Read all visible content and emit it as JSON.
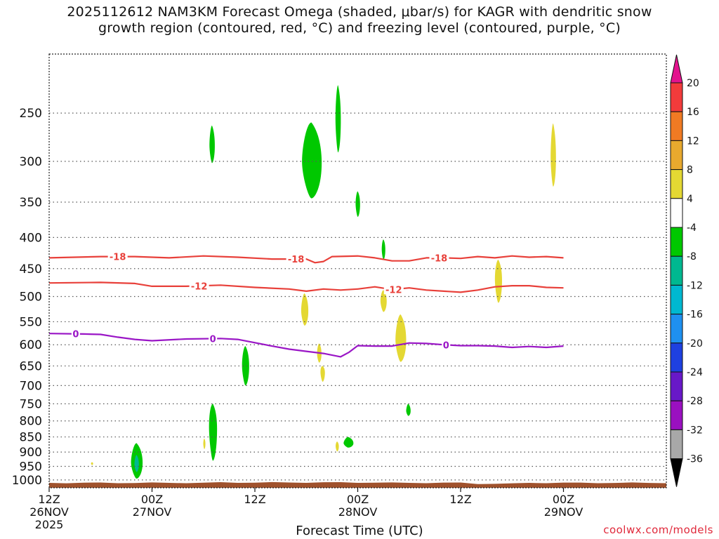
{
  "title_line1": "2025112612 NAM3KM Forecast Omega (shaded, μbar/s) for KAGR with dendritic snow",
  "title_line2": "growth region (contoured, red, °C) and freezing level (contoured, purple, °C)",
  "credit": "coolwx.com/models",
  "chart_data": {
    "type": "time-height",
    "xlabel": "Forecast Time (UTC)",
    "ylabel": "",
    "xlim_hours": [
      0,
      72
    ],
    "ylim_hpa": [
      1030,
      200
    ],
    "y_ticks": [
      250,
      300,
      350,
      400,
      450,
      500,
      550,
      600,
      650,
      700,
      750,
      800,
      850,
      900,
      950,
      1000
    ],
    "x_ticks": [
      {
        "hour": 0,
        "lines": [
          "12Z",
          "26NOV",
          "2025"
        ]
      },
      {
        "hour": 12,
        "lines": [
          "00Z",
          "27NOV"
        ]
      },
      {
        "hour": 24,
        "lines": [
          "12Z"
        ]
      },
      {
        "hour": 36,
        "lines": [
          "00Z",
          "28NOV"
        ]
      },
      {
        "hour": 48,
        "lines": [
          "12Z"
        ]
      },
      {
        "hour": 60,
        "lines": [
          "00Z",
          "29NOV"
        ]
      }
    ],
    "contours": [
      {
        "name": "dgz-minus18",
        "label": "-18",
        "color": "#e8403a",
        "label_hours": [
          8.0,
          28.8,
          45.5
        ],
        "points": [
          [
            0,
            432
          ],
          [
            6,
            430
          ],
          [
            10,
            430
          ],
          [
            14,
            432
          ],
          [
            18,
            429
          ],
          [
            22,
            431
          ],
          [
            26,
            434
          ],
          [
            30,
            434
          ],
          [
            31,
            440
          ],
          [
            32,
            438
          ],
          [
            33,
            430
          ],
          [
            36,
            429
          ],
          [
            38,
            432
          ],
          [
            40,
            437
          ],
          [
            42,
            437
          ],
          [
            44,
            432
          ],
          [
            46,
            432
          ],
          [
            48,
            433
          ],
          [
            50,
            430
          ],
          [
            52,
            432
          ],
          [
            54,
            429
          ],
          [
            56,
            431
          ],
          [
            58,
            430
          ],
          [
            60,
            432
          ]
        ]
      },
      {
        "name": "dgz-minus12",
        "label": "-12",
        "color": "#e8403a",
        "label_hours": [
          17.5,
          40.2
        ],
        "points": [
          [
            0,
            475
          ],
          [
            6,
            474
          ],
          [
            10,
            476
          ],
          [
            12,
            481
          ],
          [
            16,
            481
          ],
          [
            20,
            479
          ],
          [
            24,
            483
          ],
          [
            28,
            486
          ],
          [
            30,
            490
          ],
          [
            32,
            486
          ],
          [
            34,
            488
          ],
          [
            36,
            486
          ],
          [
            38,
            482
          ],
          [
            40,
            487
          ],
          [
            42,
            484
          ],
          [
            44,
            488
          ],
          [
            48,
            492
          ],
          [
            50,
            488
          ],
          [
            52,
            482
          ],
          [
            54,
            480
          ],
          [
            56,
            480
          ],
          [
            58,
            483
          ],
          [
            60,
            484
          ]
        ]
      },
      {
        "name": "freezing-level",
        "label": "0",
        "color": "#9a16c6",
        "label_hours": [
          3.1,
          19.1,
          46.3
        ],
        "points": [
          [
            0,
            575
          ],
          [
            4,
            576
          ],
          [
            6,
            577
          ],
          [
            8,
            583
          ],
          [
            10,
            588
          ],
          [
            12,
            591
          ],
          [
            16,
            587
          ],
          [
            20,
            586
          ],
          [
            22,
            588
          ],
          [
            26,
            603
          ],
          [
            28,
            610
          ],
          [
            30,
            615
          ],
          [
            32,
            620
          ],
          [
            34,
            628
          ],
          [
            35,
            617
          ],
          [
            36,
            602
          ],
          [
            38,
            603
          ],
          [
            40,
            603
          ],
          [
            42,
            596
          ],
          [
            44,
            597
          ],
          [
            46,
            600
          ],
          [
            48,
            602
          ],
          [
            50,
            602
          ],
          [
            52,
            603
          ],
          [
            54,
            606
          ],
          [
            56,
            604
          ],
          [
            58,
            606
          ],
          [
            60,
            603
          ]
        ]
      }
    ],
    "omega_shading": [
      {
        "value": -6,
        "color": "#00c800",
        "center_hour": 19.0,
        "center_hpa": 282,
        "half_width_hours": 0.3,
        "top_hpa": 262,
        "bottom_hpa": 302
      },
      {
        "value": -6,
        "color": "#00c800",
        "center_hour": 30.6,
        "center_hpa": 300,
        "half_width_hours": 1.1,
        "top_hpa": 259,
        "bottom_hpa": 345
      },
      {
        "value": -6,
        "color": "#00c800",
        "center_hour": 33.7,
        "center_hpa": 255,
        "half_width_hours": 0.3,
        "top_hpa": 225,
        "bottom_hpa": 290
      },
      {
        "value": -6,
        "color": "#00c800",
        "center_hour": 36.0,
        "center_hpa": 352,
        "half_width_hours": 0.25,
        "top_hpa": 336,
        "bottom_hpa": 370
      },
      {
        "value": -6,
        "color": "#00c800",
        "center_hour": 39.0,
        "center_hpa": 418,
        "half_width_hours": 0.2,
        "top_hpa": 403,
        "bottom_hpa": 435
      },
      {
        "value": -6,
        "color": "#00c800",
        "center_hour": 22.9,
        "center_hpa": 648,
        "half_width_hours": 0.4,
        "top_hpa": 603,
        "bottom_hpa": 700
      },
      {
        "value": -6,
        "color": "#00c800",
        "center_hour": 19.1,
        "center_hpa": 818,
        "half_width_hours": 0.45,
        "top_hpa": 750,
        "bottom_hpa": 930
      },
      {
        "value": -6,
        "color": "#00c800",
        "center_hour": 41.9,
        "center_hpa": 770,
        "half_width_hours": 0.25,
        "top_hpa": 750,
        "bottom_hpa": 785
      },
      {
        "value": -6,
        "color": "#00c800",
        "center_hour": 34.9,
        "center_hpa": 870,
        "half_width_hours": 0.55,
        "top_hpa": 850,
        "bottom_hpa": 885
      },
      {
        "value": -6,
        "color": "#00c800",
        "center_hour": 10.2,
        "center_hpa": 935,
        "half_width_hours": 0.65,
        "top_hpa": 870,
        "bottom_hpa": 995
      },
      {
        "value": -10,
        "color": "#00b890",
        "center_hour": 10.2,
        "center_hpa": 942,
        "half_width_hours": 0.25,
        "top_hpa": 910,
        "bottom_hpa": 970
      },
      {
        "value": 6,
        "color": "#e4d833",
        "center_hour": 58.8,
        "center_hpa": 295,
        "half_width_hours": 0.3,
        "top_hpa": 260,
        "bottom_hpa": 330
      },
      {
        "value": 6,
        "color": "#e4d833",
        "center_hour": 52.4,
        "center_hpa": 468,
        "half_width_hours": 0.4,
        "top_hpa": 435,
        "bottom_hpa": 512
      },
      {
        "value": 6,
        "color": "#e4d833",
        "center_hour": 29.8,
        "center_hpa": 527,
        "half_width_hours": 0.4,
        "top_hpa": 494,
        "bottom_hpa": 558
      },
      {
        "value": 6,
        "color": "#e4d833",
        "center_hour": 39.0,
        "center_hpa": 508,
        "half_width_hours": 0.35,
        "top_hpa": 488,
        "bottom_hpa": 530
      },
      {
        "value": 6,
        "color": "#e4d833",
        "center_hour": 41.0,
        "center_hpa": 588,
        "half_width_hours": 0.6,
        "top_hpa": 535,
        "bottom_hpa": 640
      },
      {
        "value": 6,
        "color": "#e4d833",
        "center_hour": 31.5,
        "center_hpa": 620,
        "half_width_hours": 0.25,
        "top_hpa": 597,
        "bottom_hpa": 642
      },
      {
        "value": 6,
        "color": "#e4d833",
        "center_hour": 31.9,
        "center_hpa": 665,
        "half_width_hours": 0.25,
        "top_hpa": 650,
        "bottom_hpa": 690
      },
      {
        "value": 6,
        "color": "#e4d833",
        "center_hour": 18.1,
        "center_hpa": 872,
        "half_width_hours": 0.12,
        "top_hpa": 855,
        "bottom_hpa": 890
      },
      {
        "value": 6,
        "color": "#e4d833",
        "center_hour": 33.6,
        "center_hpa": 880,
        "half_width_hours": 0.18,
        "top_hpa": 865,
        "bottom_hpa": 898
      },
      {
        "value": 6,
        "color": "#e4d833",
        "center_hour": 5.0,
        "center_hpa": 940,
        "half_width_hours": 0.12,
        "top_hpa": 935,
        "bottom_hpa": 945
      }
    ],
    "terrain": {
      "color": "#a0522d",
      "pressure_hpa": 1011
    },
    "colorbar": {
      "levels": [
        "20",
        "16",
        "12",
        "8",
        "4",
        "-4",
        "-8",
        "-12",
        "-16",
        "-20",
        "-24",
        "-28",
        "-32",
        "-36"
      ],
      "colors": [
        "#e3138e",
        "#f23b3b",
        "#f07a23",
        "#e8a92e",
        "#e4d833",
        "#ffffff",
        "#00c800",
        "#00b890",
        "#00b8d0",
        "#1e90f0",
        "#1e40e0",
        "#6818c8",
        "#9a10c0",
        "#a8a8a8",
        "#000000"
      ]
    }
  }
}
